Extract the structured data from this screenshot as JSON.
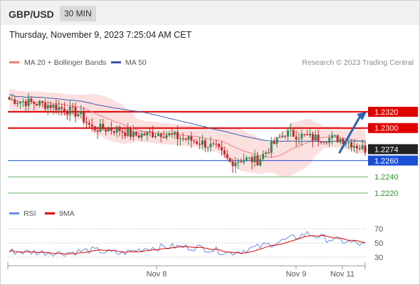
{
  "header": {
    "pair": "GBP/USD",
    "timeframe": "30 MIN"
  },
  "datetime": "Thursday, November 9, 2023 7:25:04 AM CET",
  "legend": {
    "ma20_label": "MA 20 + Bollinger Bands",
    "ma50_label": "MA 50",
    "copyright": "Research © 2023 Trading Central",
    "rsi_label": "RSI",
    "ma9_label": "9MA"
  },
  "colors": {
    "ma20": "#f08080",
    "ma50": "#3b5ba9",
    "band": "#fbd9d9",
    "resistance": "#e00000",
    "support": "#1a4ed6",
    "target": "#6bb36b",
    "bull": "#2e8b57",
    "bear": "#c62828",
    "arrow": "#2a63b5",
    "rsi": "#6a8fe0",
    "rsi_ma": "#e00000"
  },
  "chart_data": [
    {
      "type": "candlestick",
      "title": "GBP/USD",
      "timeframe": "30 MIN",
      "x_ticks": [
        "Nov 8",
        "Nov 9",
        "Nov 11"
      ],
      "ylim": [
        1.2206,
        1.2376
      ],
      "current_price": 1.2274,
      "levels": [
        {
          "label": "1.2320",
          "value": 1.232,
          "kind": "resistance"
        },
        {
          "label": "1.2300",
          "value": 1.23,
          "kind": "resistance"
        },
        {
          "label": "1.2260",
          "value": 1.226,
          "kind": "support"
        },
        {
          "label": "1.2240",
          "value": 1.224,
          "kind": "target"
        },
        {
          "label": "1.2220",
          "value": 1.222,
          "kind": "target"
        }
      ],
      "projection": {
        "from": 1.227,
        "to": 1.232
      },
      "series": [
        {
          "name": "MA 20 + Bollinger Bands"
        },
        {
          "name": "MA 50"
        }
      ]
    },
    {
      "type": "line",
      "series": [
        {
          "name": "RSI"
        },
        {
          "name": "9MA"
        }
      ],
      "y_ticks": [
        30,
        50,
        70
      ],
      "ylim": [
        22,
        78
      ]
    }
  ]
}
